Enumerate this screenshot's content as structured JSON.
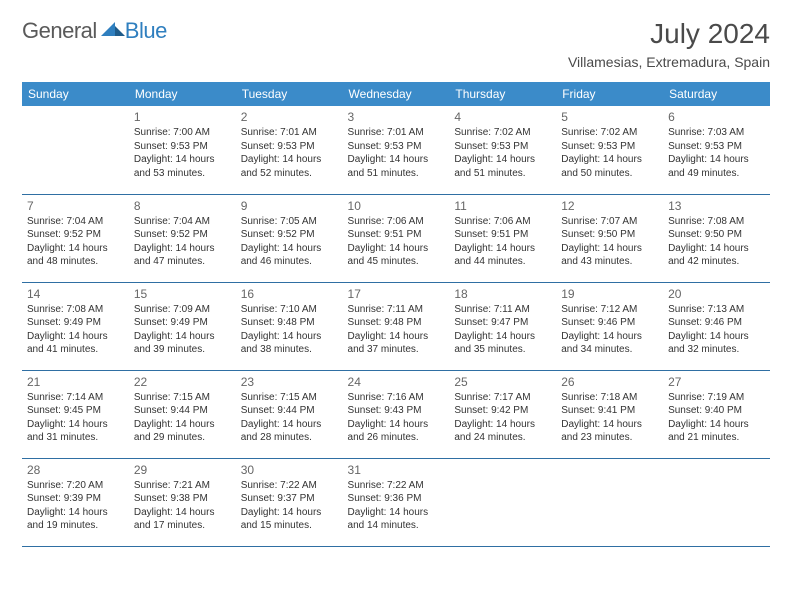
{
  "logo": {
    "word1": "General",
    "word2": "Blue"
  },
  "header": {
    "title": "July 2024",
    "location": "Villamesias, Extremadura, Spain"
  },
  "colors": {
    "header_bg": "#3b8bc9",
    "header_text": "#ffffff",
    "row_border": "#2f6fa3",
    "logo_gray": "#5a5a5a",
    "logo_blue": "#2f7fbf",
    "text": "#333333",
    "daynum": "#666666"
  },
  "dayHeaders": [
    "Sunday",
    "Monday",
    "Tuesday",
    "Wednesday",
    "Thursday",
    "Friday",
    "Saturday"
  ],
  "weeks": [
    [
      null,
      {
        "d": "1",
        "sr": "7:00 AM",
        "ss": "9:53 PM",
        "dl": "14 hours and 53 minutes."
      },
      {
        "d": "2",
        "sr": "7:01 AM",
        "ss": "9:53 PM",
        "dl": "14 hours and 52 minutes."
      },
      {
        "d": "3",
        "sr": "7:01 AM",
        "ss": "9:53 PM",
        "dl": "14 hours and 51 minutes."
      },
      {
        "d": "4",
        "sr": "7:02 AM",
        "ss": "9:53 PM",
        "dl": "14 hours and 51 minutes."
      },
      {
        "d": "5",
        "sr": "7:02 AM",
        "ss": "9:53 PM",
        "dl": "14 hours and 50 minutes."
      },
      {
        "d": "6",
        "sr": "7:03 AM",
        "ss": "9:53 PM",
        "dl": "14 hours and 49 minutes."
      }
    ],
    [
      {
        "d": "7",
        "sr": "7:04 AM",
        "ss": "9:52 PM",
        "dl": "14 hours and 48 minutes."
      },
      {
        "d": "8",
        "sr": "7:04 AM",
        "ss": "9:52 PM",
        "dl": "14 hours and 47 minutes."
      },
      {
        "d": "9",
        "sr": "7:05 AM",
        "ss": "9:52 PM",
        "dl": "14 hours and 46 minutes."
      },
      {
        "d": "10",
        "sr": "7:06 AM",
        "ss": "9:51 PM",
        "dl": "14 hours and 45 minutes."
      },
      {
        "d": "11",
        "sr": "7:06 AM",
        "ss": "9:51 PM",
        "dl": "14 hours and 44 minutes."
      },
      {
        "d": "12",
        "sr": "7:07 AM",
        "ss": "9:50 PM",
        "dl": "14 hours and 43 minutes."
      },
      {
        "d": "13",
        "sr": "7:08 AM",
        "ss": "9:50 PM",
        "dl": "14 hours and 42 minutes."
      }
    ],
    [
      {
        "d": "14",
        "sr": "7:08 AM",
        "ss": "9:49 PM",
        "dl": "14 hours and 41 minutes."
      },
      {
        "d": "15",
        "sr": "7:09 AM",
        "ss": "9:49 PM",
        "dl": "14 hours and 39 minutes."
      },
      {
        "d": "16",
        "sr": "7:10 AM",
        "ss": "9:48 PM",
        "dl": "14 hours and 38 minutes."
      },
      {
        "d": "17",
        "sr": "7:11 AM",
        "ss": "9:48 PM",
        "dl": "14 hours and 37 minutes."
      },
      {
        "d": "18",
        "sr": "7:11 AM",
        "ss": "9:47 PM",
        "dl": "14 hours and 35 minutes."
      },
      {
        "d": "19",
        "sr": "7:12 AM",
        "ss": "9:46 PM",
        "dl": "14 hours and 34 minutes."
      },
      {
        "d": "20",
        "sr": "7:13 AM",
        "ss": "9:46 PM",
        "dl": "14 hours and 32 minutes."
      }
    ],
    [
      {
        "d": "21",
        "sr": "7:14 AM",
        "ss": "9:45 PM",
        "dl": "14 hours and 31 minutes."
      },
      {
        "d": "22",
        "sr": "7:15 AM",
        "ss": "9:44 PM",
        "dl": "14 hours and 29 minutes."
      },
      {
        "d": "23",
        "sr": "7:15 AM",
        "ss": "9:44 PM",
        "dl": "14 hours and 28 minutes."
      },
      {
        "d": "24",
        "sr": "7:16 AM",
        "ss": "9:43 PM",
        "dl": "14 hours and 26 minutes."
      },
      {
        "d": "25",
        "sr": "7:17 AM",
        "ss": "9:42 PM",
        "dl": "14 hours and 24 minutes."
      },
      {
        "d": "26",
        "sr": "7:18 AM",
        "ss": "9:41 PM",
        "dl": "14 hours and 23 minutes."
      },
      {
        "d": "27",
        "sr": "7:19 AM",
        "ss": "9:40 PM",
        "dl": "14 hours and 21 minutes."
      }
    ],
    [
      {
        "d": "28",
        "sr": "7:20 AM",
        "ss": "9:39 PM",
        "dl": "14 hours and 19 minutes."
      },
      {
        "d": "29",
        "sr": "7:21 AM",
        "ss": "9:38 PM",
        "dl": "14 hours and 17 minutes."
      },
      {
        "d": "30",
        "sr": "7:22 AM",
        "ss": "9:37 PM",
        "dl": "14 hours and 15 minutes."
      },
      {
        "d": "31",
        "sr": "7:22 AM",
        "ss": "9:36 PM",
        "dl": "14 hours and 14 minutes."
      },
      null,
      null,
      null
    ]
  ],
  "labels": {
    "sunrise": "Sunrise: ",
    "sunset": "Sunset: ",
    "daylight": "Daylight: "
  }
}
